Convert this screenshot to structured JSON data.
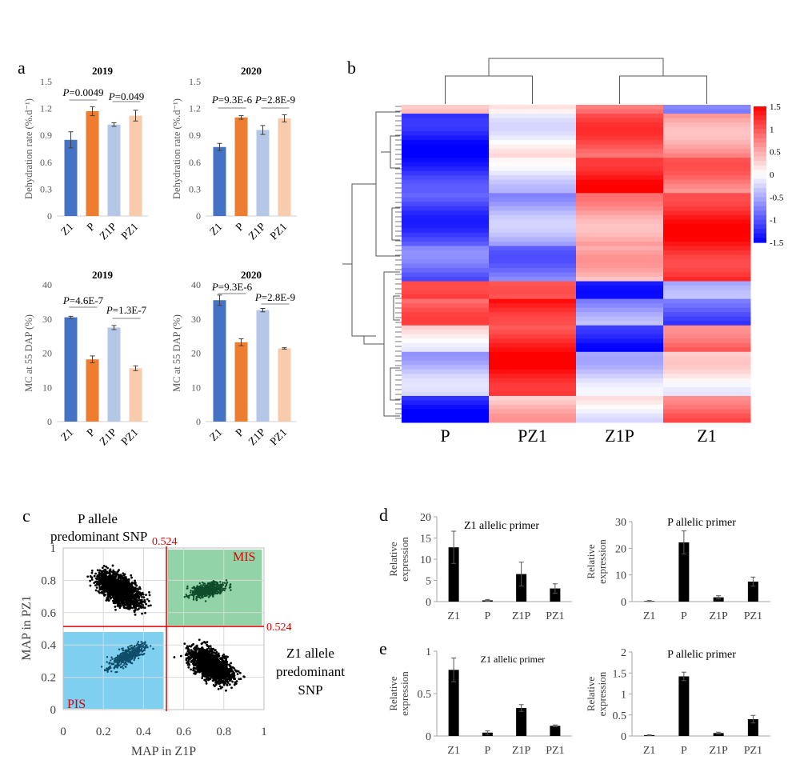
{
  "panel_labels": {
    "a": "a",
    "b": "b",
    "c": "c",
    "d": "d",
    "e": "e"
  },
  "chart_data": [
    {
      "id": "a1",
      "type": "bar",
      "title": "2019",
      "ylabel": "Dehydration rate (%.d⁻¹)",
      "categories": [
        "Z1",
        "P",
        "Z1P",
        "PZ1"
      ],
      "values": [
        0.85,
        1.17,
        1.02,
        1.12
      ],
      "errors": [
        0.09,
        0.05,
        0.02,
        0.06
      ],
      "colors": [
        "#4472c4",
        "#ed7d31",
        "#b4c7e7",
        "#f8cbad"
      ],
      "ylim": [
        0,
        1.5
      ],
      "yticks": [
        "0",
        "0.3",
        "0.6",
        "0.9",
        "1.2",
        "1.5"
      ],
      "annotations": [
        "P=0.0049",
        "P=0.049"
      ]
    },
    {
      "id": "a2",
      "type": "bar",
      "title": "2020",
      "ylabel": "Dehydration rate (%.d⁻¹)",
      "categories": [
        "Z1",
        "P",
        "Z1P",
        "PZ1"
      ],
      "values": [
        0.77,
        1.1,
        0.96,
        1.09
      ],
      "errors": [
        0.04,
        0.02,
        0.05,
        0.04
      ],
      "colors": [
        "#4472c4",
        "#ed7d31",
        "#b4c7e7",
        "#f8cbad"
      ],
      "ylim": [
        0,
        1.5
      ],
      "yticks": [
        "0",
        "0.3",
        "0.6",
        "0.9",
        "1.2",
        "1.5"
      ],
      "annotations": [
        "P=9.3E-6",
        "P=2.8E-9"
      ]
    },
    {
      "id": "a3",
      "type": "bar",
      "title": "2019",
      "ylabel": "MC at 55 DAP (%)",
      "categories": [
        "Z1",
        "P",
        "Z1P",
        "PZ1"
      ],
      "values": [
        30.5,
        18.2,
        27.5,
        15.6
      ],
      "errors": [
        0.3,
        1.0,
        0.6,
        0.7
      ],
      "colors": [
        "#4472c4",
        "#ed7d31",
        "#b4c7e7",
        "#f8cbad"
      ],
      "ylim": [
        0,
        40
      ],
      "yticks": [
        "0",
        "10",
        "20",
        "30",
        "40"
      ],
      "annotations": [
        "P=4.6E-7",
        "P=1.3E-7"
      ]
    },
    {
      "id": "a4",
      "type": "bar",
      "title": "2020",
      "ylabel": "MC at 55 DAP (%)",
      "categories": [
        "Z1",
        "P",
        "Z1P",
        "PZ1"
      ],
      "values": [
        35.5,
        23.2,
        32.6,
        21.4
      ],
      "errors": [
        1.5,
        1.0,
        0.5,
        0.2
      ],
      "colors": [
        "#4472c4",
        "#ed7d31",
        "#b4c7e7",
        "#f8cbad"
      ],
      "ylim": [
        0,
        40
      ],
      "yticks": [
        "0",
        "10",
        "20",
        "30",
        "40"
      ],
      "annotations": [
        "P=9.3E-6",
        "P=2.8E-9"
      ]
    },
    {
      "id": "b",
      "type": "heatmap",
      "columns": [
        "P",
        "PZ1",
        "Z1P",
        "Z1"
      ],
      "colorbar_ticks": [
        "1.5",
        "1",
        "0.5",
        "0",
        "-0.5",
        "-1",
        "-1.5"
      ],
      "color_range": [
        -1.5,
        1.5
      ],
      "row_profiles": [
        [
          0.3,
          0.1,
          0.9,
          -0.9
        ],
        [
          -1.4,
          0.0,
          1.0,
          0.6
        ],
        [
          -1.2,
          -0.2,
          1.4,
          0.8
        ],
        [
          -1.1,
          -0.5,
          0.6,
          1.3
        ],
        [
          -0.9,
          -0.8,
          0.4,
          1.3
        ],
        [
          1.3,
          0.8,
          -1.2,
          -0.6
        ],
        [
          0.9,
          1.3,
          -0.6,
          -1.0
        ],
        [
          0.1,
          1.2,
          -1.4,
          0.9
        ],
        [
          -0.4,
          1.4,
          -0.3,
          0.1
        ],
        [
          -1.3,
          0.4,
          0.0,
          0.9
        ]
      ],
      "row_counts": [
        2,
        10,
        8,
        12,
        8,
        4,
        6,
        6,
        10,
        6
      ]
    },
    {
      "id": "c",
      "type": "scatter",
      "xlabel": "MAP in Z1P",
      "ylabel": "MAP in PZ1",
      "xlim": [
        0,
        1
      ],
      "ylim": [
        0,
        1
      ],
      "xticks": [
        "0",
        "0.2",
        "0.4",
        "0.6",
        "0.8",
        "1"
      ],
      "yticks": [
        "0",
        "0.2",
        "0.4",
        "0.6",
        "0.8",
        "1"
      ],
      "threshold": 0.524,
      "threshold_label": "0.524",
      "region_labels": {
        "MIS": "MIS",
        "PIS": "PIS"
      },
      "region_colors": {
        "MIS": "#92d3a7",
        "PIS": "#7fd0f0"
      },
      "group_labels": {
        "p_allele": "P allele\npredominant SNP",
        "z1_allele": "Z1 allele\npredominant\nSNP"
      }
    },
    {
      "id": "d1",
      "type": "bar",
      "title": "Z1 allelic  primer",
      "ylabel": "Relative\nexpression",
      "categories": [
        "Z1",
        "P",
        "Z1P",
        "PZ1"
      ],
      "values": [
        12.8,
        0.3,
        6.5,
        3.1
      ],
      "errors": [
        3.8,
        0.2,
        2.8,
        1.1
      ],
      "ylim": [
        0,
        20
      ],
      "yticks": [
        "0",
        "5",
        "10",
        "15",
        "20"
      ]
    },
    {
      "id": "d2",
      "type": "bar",
      "title": "P allelic  primer",
      "ylabel": "Relative\nexpression",
      "categories": [
        "Z1",
        "P",
        "Z1P",
        "PZ1"
      ],
      "values": [
        0.2,
        22.2,
        1.6,
        7.5
      ],
      "errors": [
        0.2,
        4.3,
        0.6,
        1.7
      ],
      "ylim": [
        0,
        30
      ],
      "yticks": [
        "0",
        "10",
        "20",
        "30"
      ]
    },
    {
      "id": "e1",
      "type": "bar",
      "title": "Z1 allelic primer",
      "ylabel": "Relative\nexpression",
      "categories": [
        "Z1",
        "P",
        "Z1P",
        "PZ1"
      ],
      "values": [
        0.78,
        0.04,
        0.33,
        0.12
      ],
      "errors": [
        0.14,
        0.02,
        0.04,
        0.01
      ],
      "ylim": [
        0,
        1
      ],
      "yticks": [
        "0",
        "0.5",
        "1"
      ]
    },
    {
      "id": "e2",
      "type": "bar",
      "title": "P allelic  primer",
      "ylabel": "Relative\nexpression",
      "categories": [
        "Z1",
        "P",
        "Z1P",
        "PZ1"
      ],
      "values": [
        0.02,
        1.42,
        0.07,
        0.4
      ],
      "errors": [
        0.01,
        0.1,
        0.02,
        0.09
      ],
      "ylim": [
        0,
        2
      ],
      "yticks": [
        "0",
        "0.5",
        "1",
        "1.5",
        "2"
      ]
    }
  ]
}
